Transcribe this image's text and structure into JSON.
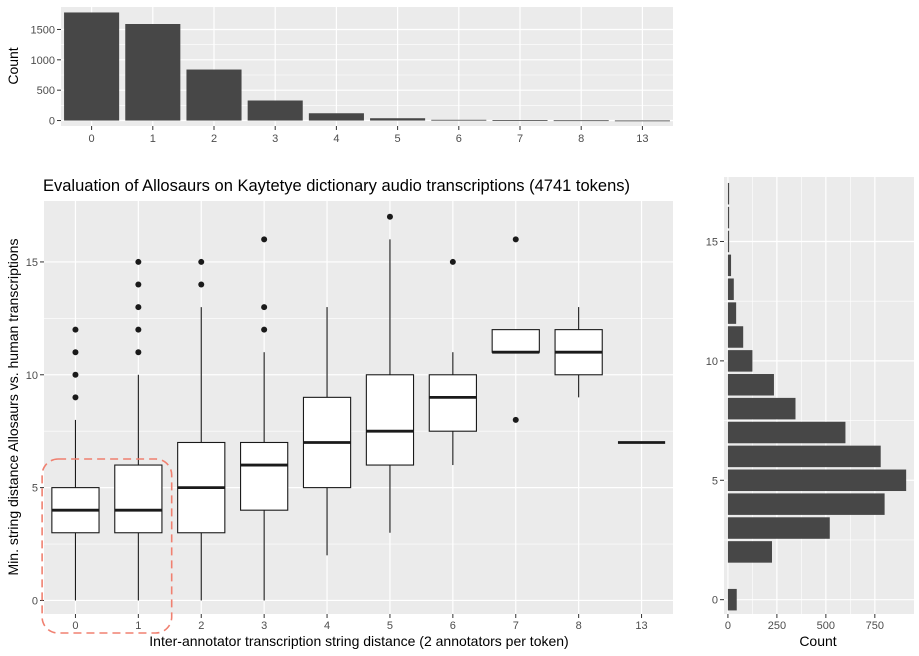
{
  "figure": {
    "main_title": "Evaluation of Allosaurs on Kaytetye dictionary audio transcriptions (4741 tokens)",
    "main_xlabel": "Inter-annotator transcription string distance (2 annotators per token)",
    "main_ylabel": "Min. string distance Allosaurs vs. human transcriptions",
    "top_ylabel": "Count",
    "right_xlabel": "Count"
  },
  "colors": {
    "panel_bg": "#ebebeb",
    "grid": "#ffffff",
    "bar_fill": "#474747",
    "box_stroke": "#1a1a1a",
    "box_fill": "#ffffff",
    "highlight": "#f08070"
  },
  "chart_data": [
    {
      "type": "box",
      "title": "Evaluation of Allosaurs on Kaytetye dictionary audio transcriptions (4741 tokens)",
      "xlabel": "Inter-annotator transcription string distance (2 annotators per token)",
      "ylabel": "Min. string distance Allosaurs vs. human transcriptions",
      "categories": [
        "0",
        "1",
        "2",
        "3",
        "4",
        "5",
        "6",
        "7",
        "8",
        "13"
      ],
      "y_ticks": [
        0,
        5,
        10,
        15
      ],
      "ylim": [
        -0.6,
        17.7
      ],
      "grid": true,
      "boxes": [
        {
          "category": "0",
          "whisker_low": 0,
          "q1": 3,
          "median": 4,
          "q3": 5,
          "whisker_high": 8,
          "outliers": [
            9,
            10,
            11,
            12
          ]
        },
        {
          "category": "1",
          "whisker_low": 0,
          "q1": 3,
          "median": 4,
          "q3": 6,
          "whisker_high": 10,
          "outliers": [
            11,
            12,
            13,
            14,
            15
          ]
        },
        {
          "category": "2",
          "whisker_low": 0,
          "q1": 3,
          "median": 5,
          "q3": 7,
          "whisker_high": 13,
          "outliers": [
            14,
            15
          ]
        },
        {
          "category": "3",
          "whisker_low": 0,
          "q1": 4,
          "median": 6,
          "q3": 7,
          "whisker_high": 11,
          "outliers": [
            12,
            13,
            16
          ]
        },
        {
          "category": "4",
          "whisker_low": 2,
          "q1": 5,
          "median": 7,
          "q3": 9,
          "whisker_high": 13,
          "outliers": []
        },
        {
          "category": "5",
          "whisker_low": 3,
          "q1": 6,
          "median": 7.5,
          "q3": 10,
          "whisker_high": 16,
          "outliers": [
            17
          ]
        },
        {
          "category": "6",
          "whisker_low": 6,
          "q1": 7.5,
          "median": 9,
          "q3": 10,
          "whisker_high": 11,
          "outliers": [
            15
          ]
        },
        {
          "category": "7",
          "whisker_low": 11,
          "q1": 11,
          "median": 11,
          "q3": 12,
          "whisker_high": 12,
          "outliers": [
            8,
            16
          ]
        },
        {
          "category": "8",
          "whisker_low": 9,
          "q1": 10,
          "median": 11,
          "q3": 12,
          "whisker_high": 13,
          "outliers": []
        },
        {
          "category": "13",
          "whisker_low": 7,
          "q1": 7,
          "median": 7,
          "q3": 7,
          "whisker_high": 7,
          "outliers": []
        }
      ],
      "highlighted_categories": [
        "0",
        "1"
      ]
    },
    {
      "type": "bar",
      "xlabel": "",
      "ylabel": "Count",
      "categories": [
        "0",
        "1",
        "2",
        "3",
        "4",
        "5",
        "6",
        "7",
        "8",
        "13"
      ],
      "values": [
        1780,
        1590,
        840,
        330,
        120,
        38,
        12,
        6,
        4,
        1
      ],
      "y_ticks": [
        0,
        500,
        1000,
        1500
      ],
      "ylim": [
        -90,
        1870
      ],
      "grid": true
    },
    {
      "type": "bar",
      "orientation": "horizontal",
      "xlabel": "Count",
      "ylabel": "",
      "categories": [
        0,
        1,
        2,
        3,
        4,
        5,
        6,
        7,
        8,
        9,
        10,
        11,
        12,
        13,
        14,
        15,
        16,
        17
      ],
      "values": [
        45,
        0,
        225,
        520,
        800,
        910,
        780,
        600,
        345,
        235,
        125,
        78,
        42,
        30,
        16,
        6,
        4,
        2
      ],
      "x_ticks": [
        0,
        250,
        500,
        750
      ],
      "xlim": [
        -20,
        950
      ],
      "y_ticks": [
        0,
        5,
        10,
        15
      ],
      "ylim": [
        -0.6,
        17.7
      ],
      "grid": true
    }
  ]
}
